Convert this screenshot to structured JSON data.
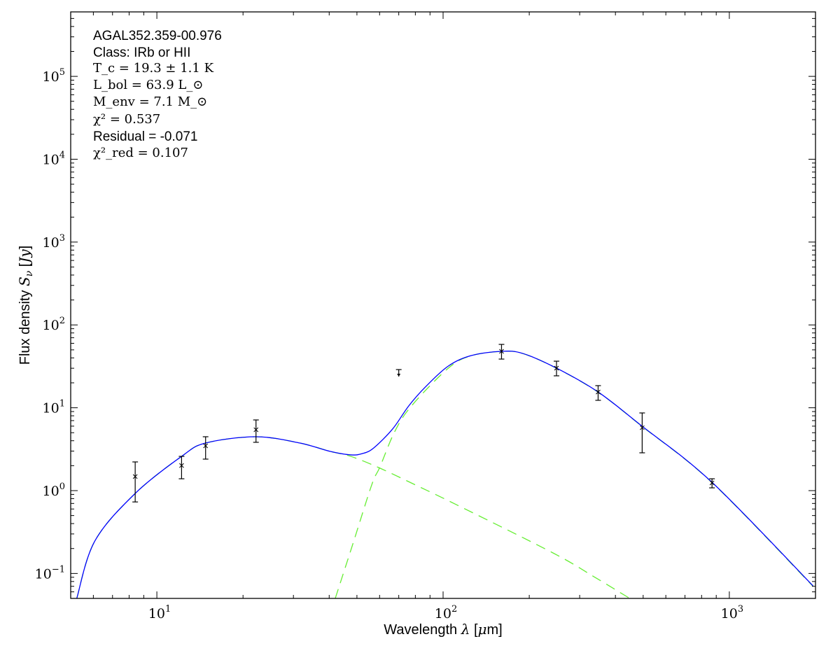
{
  "chart_data": {
    "type": "scatter",
    "x_scale": "log",
    "y_scale": "log",
    "xlim": [
      5,
      2000
    ],
    "ylim": [
      0.05,
      600000
    ],
    "grid": false,
    "xlabel": "Wavelength λ [μm]",
    "ylabel": "Flux density S_ν [Jy]",
    "x_ticks": [
      {
        "value": 10,
        "label": "10",
        "exp": "1"
      },
      {
        "value": 100,
        "label": "10",
        "exp": "2"
      },
      {
        "value": 1000,
        "label": "10",
        "exp": "3"
      }
    ],
    "y_ticks": [
      {
        "value": 0.1,
        "label": "10",
        "exp": "−1"
      },
      {
        "value": 1,
        "label": "10",
        "exp": "0"
      },
      {
        "value": 10,
        "label": "10",
        "exp": "1"
      },
      {
        "value": 100,
        "label": "10",
        "exp": "2"
      },
      {
        "value": 1000,
        "label": "10",
        "exp": "3"
      },
      {
        "value": 10000,
        "label": "10",
        "exp": "4"
      },
      {
        "value": 100000,
        "label": "10",
        "exp": "5"
      }
    ],
    "annotations": {
      "source": "AGAL352.359-00.976",
      "class": "Class: IRb or HII",
      "tc": "T_c = 19.3 ± 1.1 K",
      "lbol": "L_bol = 63.9 L_⊙",
      "menv": "M_env = 7.1 M_⊙",
      "chi2": "χ² = 0.537",
      "residual": "Residual = -0.071",
      "chi2red": "χ²_red = 0.107"
    },
    "points": [
      {
        "x": 8.4,
        "y": 1.48,
        "err_low": 0.73,
        "err_high": 2.22
      },
      {
        "x": 12.2,
        "y": 2.01,
        "err_low": 1.39,
        "err_high": 2.59
      },
      {
        "x": 14.8,
        "y": 3.47,
        "err_low": 2.4,
        "err_high": 4.47
      },
      {
        "x": 22.2,
        "y": 5.43,
        "err_low": 3.83,
        "err_high": 7.13
      },
      {
        "x": 160,
        "y": 48,
        "err_low": 38.7,
        "err_high": 58.2
      },
      {
        "x": 249,
        "y": 30.1,
        "err_low": 24.3,
        "err_high": 36.5
      },
      {
        "x": 348,
        "y": 15.5,
        "err_low": 12.3,
        "err_high": 18.5
      },
      {
        "x": 496,
        "y": 5.75,
        "err_low": 2.86,
        "err_high": 8.66
      },
      {
        "x": 870,
        "y": 1.24,
        "err_low": 1.08,
        "err_high": 1.39
      }
    ],
    "upper_limits": [
      {
        "x": 70,
        "y": 28.9,
        "arrow_to": 23.8
      }
    ],
    "series": [
      {
        "style": "solid",
        "color": "#0000ff",
        "x": [
          5.25,
          6.07,
          8.4,
          12.2,
          14.8,
          22.2,
          31.6,
          40.4,
          47.6,
          52.3,
          57.2,
          66.6,
          75.8,
          86.7,
          104.3,
          125.5,
          160,
          190,
          249,
          348,
          496,
          870,
          1960
        ],
        "y": [
          0.05,
          0.246,
          0.925,
          2.59,
          3.75,
          4.47,
          3.75,
          2.97,
          2.7,
          2.8,
          3.27,
          5.54,
          10.5,
          17.8,
          31.9,
          42.7,
          48,
          45.2,
          30.1,
          15.5,
          5.98,
          1.26,
          0.071
        ]
      },
      {
        "style": "dashed",
        "color": "#66ee33",
        "x": [
          42,
          48.4,
          56.3,
          60.2,
          67.7,
          77.5,
          104.3,
          125.5,
          160,
          190,
          249,
          348,
          496,
          870,
          1960
        ],
        "y": [
          0.05,
          0.228,
          1.17,
          1.94,
          5.12,
          10.5,
          30.1,
          42.5,
          47.9,
          45.1,
          30.0,
          15.4,
          5.95,
          1.25,
          0.07
        ]
      },
      {
        "style": "dashed",
        "color": "#66ee33",
        "x": [
          5.25,
          6.07,
          8.4,
          12.2,
          14.8,
          22.2,
          31.6,
          40.4,
          47.6,
          59.5,
          80.1,
          110,
          242,
          339,
          449
        ],
        "y": [
          0.05,
          0.246,
          0.925,
          2.59,
          3.75,
          4.47,
          3.75,
          2.97,
          2.59,
          1.9,
          1.17,
          0.69,
          0.177,
          0.09,
          0.05
        ]
      }
    ]
  }
}
